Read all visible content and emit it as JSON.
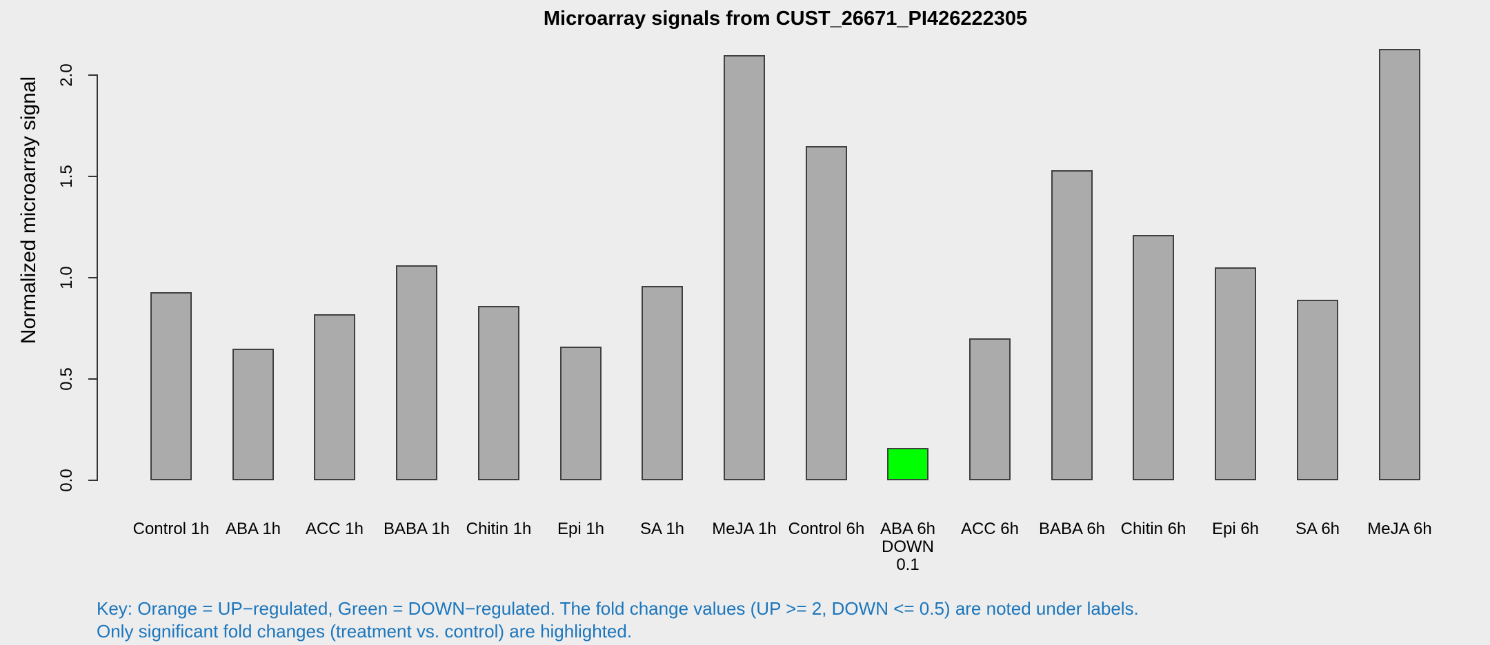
{
  "title": "Microarray signals from CUST_26671_PI426222305",
  "y_axis": {
    "label": "Normalized microarray signal",
    "tick_labels": [
      "0.0",
      "0.5",
      "1.0",
      "1.5",
      "2.0"
    ]
  },
  "key": {
    "line1": "Key: Orange = UP−regulated, Green = DOWN−regulated. The fold change values (UP >= 2, DOWN <= 0.5) are noted under labels.",
    "line2": "Only significant fold changes (treatment vs. control) are highlighted."
  },
  "colors": {
    "background": "#EDEDED",
    "bar_fill": "#ABABAB",
    "bar_border": "#404040",
    "down_regulated": "#00FF00",
    "up_regulated": "#FFA500",
    "key_text": "#1C76BC"
  },
  "chart_data": {
    "type": "bar",
    "title": "Microarray signals from CUST_26671_PI426222305",
    "xlabel": "",
    "ylabel": "Normalized microarray signal",
    "ylim": [
      0,
      2.15
    ],
    "yticks": [
      0.0,
      0.5,
      1.0,
      1.5,
      2.0
    ],
    "grid": false,
    "legend_position": "none",
    "categories": [
      "Control 1h",
      "ABA 1h",
      "ACC 1h",
      "BABA 1h",
      "Chitin 1h",
      "Epi 1h",
      "SA 1h",
      "MeJA 1h",
      "Control 6h",
      "ABA 6h",
      "ACC 6h",
      "BABA 6h",
      "Chitin 6h",
      "Epi 6h",
      "SA 6h",
      "MeJA 6h"
    ],
    "values": [
      0.93,
      0.65,
      0.82,
      1.06,
      0.86,
      0.66,
      0.96,
      2.1,
      1.65,
      0.16,
      0.7,
      1.53,
      1.21,
      1.05,
      0.89,
      2.13
    ],
    "bar_states": [
      "normal",
      "normal",
      "normal",
      "normal",
      "normal",
      "normal",
      "normal",
      "normal",
      "normal",
      "down",
      "normal",
      "normal",
      "normal",
      "normal",
      "normal",
      "normal"
    ],
    "annotations": [
      {
        "category": "ABA 6h",
        "lines": [
          "DOWN",
          "0.1"
        ],
        "fold_change": 0.1,
        "direction": "DOWN"
      }
    ]
  }
}
